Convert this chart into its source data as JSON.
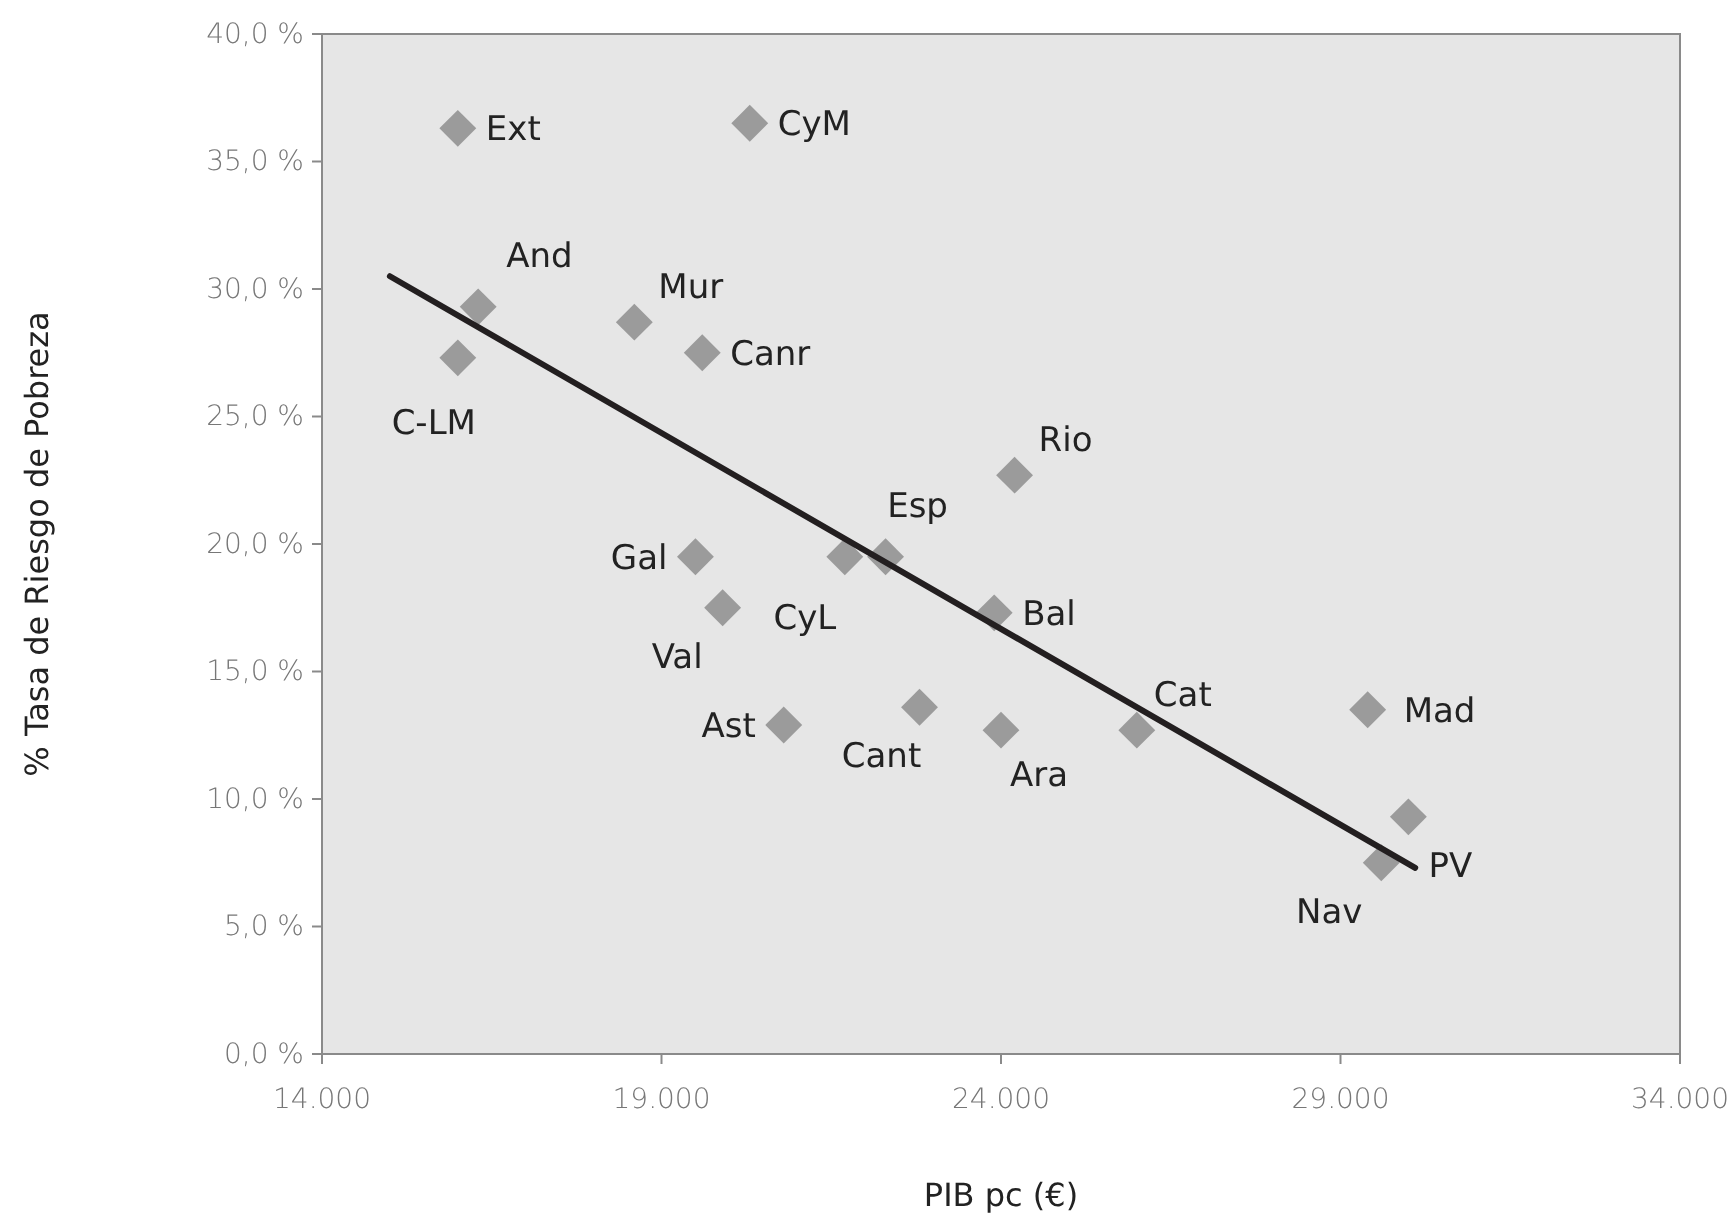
{
  "chart_data": {
    "type": "scatter",
    "xlabel": "PIB pc (€)",
    "ylabel": "% Tasa de Riesgo de Pobreza",
    "xlim": [
      14000,
      34000
    ],
    "ylim": [
      0,
      40
    ],
    "xticks": [
      {
        "value": 14000,
        "label": "14.000"
      },
      {
        "value": 19000,
        "label": "19.000"
      },
      {
        "value": 24000,
        "label": "24.000"
      },
      {
        "value": 29000,
        "label": "29.000"
      },
      {
        "value": 34000,
        "label": "34.000"
      }
    ],
    "yticks": [
      {
        "value": 0,
        "label": "0,0 %"
      },
      {
        "value": 5,
        "label": "5,0 %"
      },
      {
        "value": 10,
        "label": "10,0 %"
      },
      {
        "value": 15,
        "label": "15,0 %"
      },
      {
        "value": 20,
        "label": "20,0 %"
      },
      {
        "value": 25,
        "label": "25,0 %"
      },
      {
        "value": 30,
        "label": "30,0 %"
      },
      {
        "value": 35,
        "label": "35,0 %"
      },
      {
        "value": 40,
        "label": "40,0 %"
      }
    ],
    "grid": false,
    "series": [
      {
        "marker": "diamond",
        "color": "#9b9b9b",
        "x": [
          16000,
          20300,
          16300,
          18600,
          19600,
          16000,
          24200,
          19500,
          19900,
          21700,
          22300,
          23900,
          20800,
          22800,
          24000,
          26000,
          29400,
          30000,
          29600
        ],
        "values": [
          36.3,
          36.5,
          29.3,
          28.7,
          27.5,
          27.3,
          22.7,
          19.5,
          17.5,
          19.5,
          19.5,
          17.3,
          12.9,
          13.6,
          12.7,
          12.7,
          13.5,
          9.3,
          7.5
        ]
      },
      {
        "type": "line",
        "color": "#231f20",
        "x": [
          15000,
          30100
        ],
        "values": [
          30.5,
          7.3
        ]
      }
    ],
    "annotations": [
      {
        "text": "Ext",
        "x": 16000,
        "y": 36.3
      },
      {
        "text": "CyM",
        "x": 20300,
        "y": 36.5
      },
      {
        "text": "And",
        "x": 16300,
        "y": 29.3
      },
      {
        "text": "Mur",
        "x": 18600,
        "y": 28.7
      },
      {
        "text": "Canr",
        "x": 19600,
        "y": 27.5
      },
      {
        "text": "C-LM",
        "x": 16000,
        "y": 27.3
      },
      {
        "text": "Rio",
        "x": 24200,
        "y": 22.7
      },
      {
        "text": "Gal",
        "x": 19500,
        "y": 19.5
      },
      {
        "text": "Val",
        "x": 19900,
        "y": 17.5
      },
      {
        "text": "CyL",
        "x": 21700,
        "y": 19.5
      },
      {
        "text": "Esp",
        "x": 22300,
        "y": 19.5
      },
      {
        "text": "Bal",
        "x": 23900,
        "y": 17.3
      },
      {
        "text": "Ast",
        "x": 20800,
        "y": 12.9
      },
      {
        "text": "Cant",
        "x": 22800,
        "y": 13.6
      },
      {
        "text": "Ara",
        "x": 24000,
        "y": 12.7
      },
      {
        "text": "Cat",
        "x": 26000,
        "y": 12.7
      },
      {
        "text": "Mad",
        "x": 29400,
        "y": 13.5
      },
      {
        "text": "PV",
        "x": 30000,
        "y": 9.3
      },
      {
        "text": "Nav",
        "x": 29600,
        "y": 7.5
      }
    ]
  }
}
